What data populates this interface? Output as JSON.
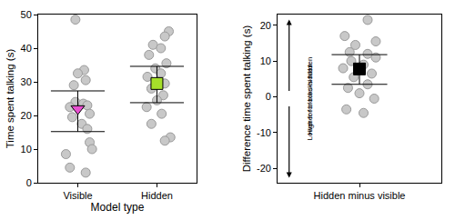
{
  "chart_data": [
    {
      "type": "scatter",
      "x_label": "Model type",
      "y_label": "Time spent talking (s)",
      "xlim": [
        0.5,
        2.5
      ],
      "xticks": [
        {
          "value": 1,
          "label": "Visible"
        },
        {
          "value": 2,
          "label": "Hidden"
        }
      ],
      "ylim": [
        0,
        50
      ],
      "yticks": [
        0,
        10,
        20,
        30,
        40,
        50
      ],
      "grid": false,
      "series": [
        {
          "color": "#c8c8c8",
          "marker": "circle",
          "x": [
            0.97,
            1.08,
            1.0,
            1.1,
            0.95,
            0.97,
            1.07,
            1.12,
            0.9,
            1.15,
            0.93,
            1.05,
            1.12,
            1.15,
            1.18,
            0.85,
            0.9,
            1.1
          ],
          "values": [
            48.5,
            33.5,
            32.5,
            30.5,
            29,
            24,
            23.5,
            23,
            22.5,
            20.5,
            19.5,
            17.5,
            16,
            12,
            10,
            8.5,
            4.5,
            3
          ]
        },
        {
          "color": "#c8c8c8",
          "marker": "circle",
          "x": [
            2.15,
            2.1,
            1.95,
            2.05,
            1.9,
            2.12,
            1.98,
            2.05,
            1.88,
            2.1,
            1.93,
            2.08,
            2.0,
            1.87,
            2.06,
            1.93,
            2.17,
            2.1
          ],
          "values": [
            45,
            43.5,
            41,
            40,
            38,
            35.5,
            34,
            32.5,
            31.5,
            29.5,
            28,
            26,
            24.5,
            22.5,
            20.5,
            17.5,
            13.5,
            12.5
          ]
        },
        {
          "color": "#e84fd0",
          "marker": "triangle-down",
          "x": [
            1
          ],
          "values": [
            22
          ],
          "error_low": [
            15.2
          ],
          "error_high": [
            27.3
          ]
        },
        {
          "color": "#a6e02a",
          "marker": "square",
          "x": [
            2
          ],
          "values": [
            29.5
          ],
          "error_low": [
            23.8
          ],
          "error_high": [
            34.6
          ]
        }
      ]
    },
    {
      "type": "scatter",
      "y_label": "Difference time spent talking (s)",
      "xlim": [
        0,
        2
      ],
      "xticks": [
        {
          "value": 1,
          "label": "Hidden minus visible"
        }
      ],
      "ylim": [
        -24,
        23
      ],
      "yticks": [
        -20,
        -10,
        0,
        10,
        20
      ],
      "grid": false,
      "annotations": [
        "Higher for blocks hidden",
        "Lower for blocks hidden"
      ],
      "series": [
        {
          "color": "#c8c8c8",
          "marker": "circle",
          "x": [
            1.1,
            0.82,
            1.2,
            0.95,
            0.88,
            1.1,
            1.2,
            0.9,
            1.05,
            0.8,
            1.15,
            0.93,
            1.1,
            0.86,
            1.0,
            1.18,
            0.84,
            1.05
          ],
          "values": [
            21.5,
            17,
            15.5,
            14.5,
            12.5,
            12,
            11,
            10,
            9,
            8,
            6.5,
            5.5,
            3.5,
            2.5,
            1,
            -0.5,
            -3.5,
            -4.5
          ]
        },
        {
          "color": "#000000",
          "marker": "square",
          "x": [
            1
          ],
          "values": [
            7.8
          ],
          "error_low": [
            3.5
          ],
          "error_high": [
            11.8
          ]
        }
      ]
    }
  ]
}
